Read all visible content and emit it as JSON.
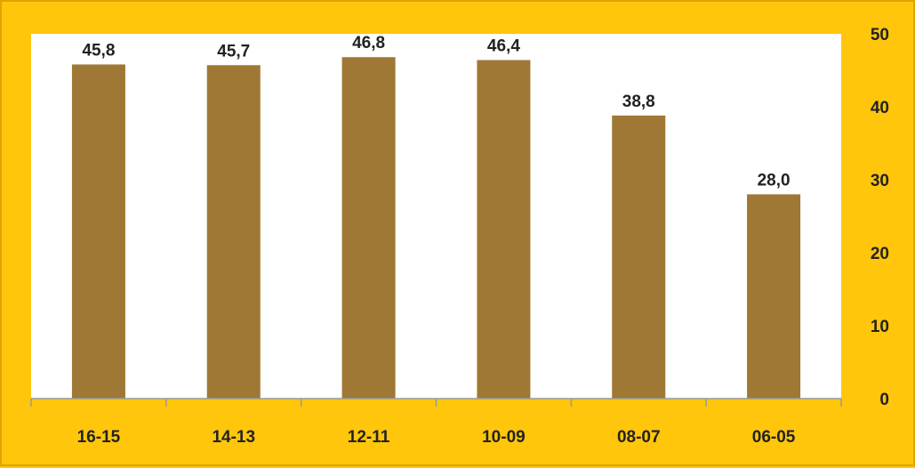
{
  "chart_data": {
    "type": "bar",
    "categories": [
      "16-15",
      "14-13",
      "12-11",
      "10-09",
      "08-07",
      "06-05"
    ],
    "values": [
      45.8,
      45.7,
      46.8,
      46.4,
      38.8,
      28.0
    ],
    "value_labels": [
      "45,8",
      "45,7",
      "46,8",
      "46,4",
      "38,8",
      "28,0"
    ],
    "yticks": [
      0,
      10,
      20,
      30,
      40,
      50
    ],
    "ylim": [
      0,
      50
    ],
    "y_axis_side": "right",
    "grid": false,
    "colors": {
      "bar": "#9e7834",
      "plot_background": "#ffffff",
      "frame": "#ffc60b",
      "axis": "#9a9a9a",
      "text": "#222222"
    }
  }
}
